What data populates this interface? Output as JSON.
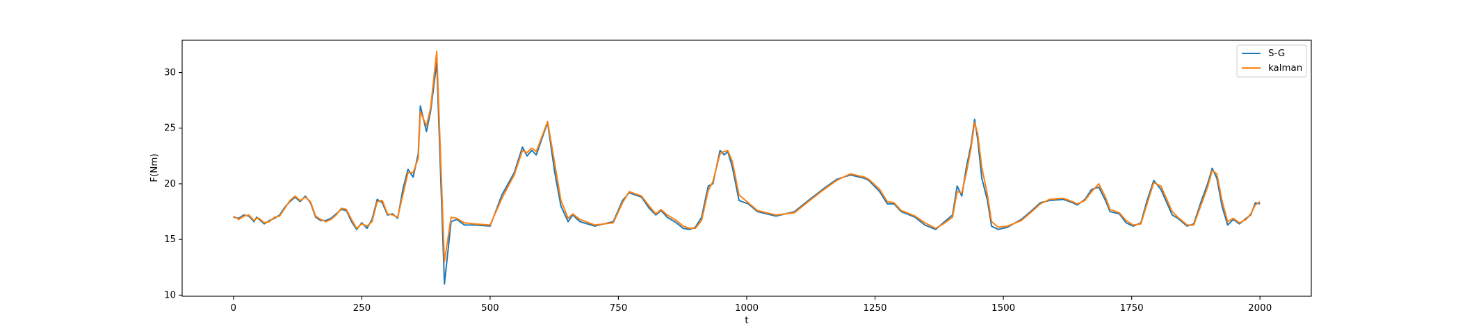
{
  "chart_data": {
    "type": "line",
    "x_label": "t",
    "y_label": "F(Nm)",
    "legend": "upper right",
    "xlim": [
      -100,
      2100
    ],
    "xticks": [
      0,
      250,
      500,
      750,
      1000,
      1250,
      1500,
      1750,
      2000
    ],
    "ylim": [
      9.9,
      32.9
    ],
    "yticks": [
      10,
      15,
      20,
      25,
      30
    ],
    "x": [
      0,
      10,
      20,
      30,
      40,
      45,
      50,
      60,
      70,
      80,
      90,
      100,
      110,
      120,
      130,
      140,
      150,
      160,
      170,
      180,
      190,
      200,
      210,
      220,
      230,
      240,
      250,
      260,
      270,
      280,
      290,
      300,
      310,
      320,
      330,
      340,
      350,
      360,
      364,
      376,
      384,
      396,
      411,
      424,
      435,
      450,
      470,
      500,
      523,
      547,
      563,
      572,
      581,
      590,
      599,
      612,
      626,
      638,
      652,
      661,
      675,
      704,
      740,
      758,
      771,
      795,
      810,
      823,
      833,
      845,
      863,
      876,
      889,
      900,
      912,
      925,
      934,
      948,
      956,
      963,
      972,
      985,
      1003,
      1021,
      1039,
      1057,
      1093,
      1120,
      1148,
      1175,
      1202,
      1229,
      1238,
      1259,
      1274,
      1287,
      1301,
      1328,
      1347,
      1368,
      1383,
      1401,
      1410,
      1419,
      1428,
      1437,
      1444,
      1450,
      1458,
      1469,
      1477,
      1490,
      1508,
      1535,
      1553,
      1572,
      1590,
      1617,
      1635,
      1644,
      1659,
      1672,
      1686,
      1699,
      1708,
      1726,
      1739,
      1753,
      1768,
      1780,
      1793,
      1807,
      1829,
      1840,
      1858,
      1871,
      1886,
      1898,
      1907,
      1916,
      1926,
      1937,
      1948,
      1960,
      1973,
      1982,
      1991,
      2000
    ],
    "series": [
      {
        "name": "S-G",
        "color": "#1f77b4",
        "values": [
          17.0,
          16.9,
          17.2,
          17.1,
          16.6,
          17.0,
          16.8,
          16.4,
          16.7,
          16.9,
          17.2,
          17.9,
          18.4,
          18.8,
          18.4,
          18.9,
          18.3,
          17.0,
          16.7,
          16.7,
          16.9,
          17.3,
          17.7,
          17.6,
          16.6,
          15.9,
          16.5,
          16.0,
          16.8,
          18.6,
          18.3,
          17.2,
          17.3,
          16.9,
          19.5,
          21.3,
          20.6,
          22.7,
          27.0,
          24.7,
          26.5,
          30.9,
          11.0,
          16.6,
          16.8,
          16.3,
          16.3,
          16.2,
          19.0,
          21.0,
          23.3,
          22.5,
          23.0,
          22.6,
          23.8,
          25.5,
          21.0,
          18.0,
          16.6,
          17.2,
          16.6,
          16.2,
          16.6,
          18.5,
          19.2,
          18.8,
          17.8,
          17.2,
          17.6,
          17.0,
          16.5,
          16.0,
          15.9,
          16.1,
          17.0,
          19.8,
          20.0,
          23.0,
          22.6,
          22.9,
          21.5,
          18.5,
          18.2,
          17.5,
          17.3,
          17.1,
          17.5,
          18.5,
          19.5,
          20.4,
          20.8,
          20.5,
          20.3,
          19.3,
          18.2,
          18.2,
          17.5,
          17.0,
          16.3,
          15.9,
          16.5,
          17.2,
          19.8,
          18.9,
          21.5,
          23.5,
          25.8,
          24.0,
          20.5,
          18.5,
          16.2,
          15.9,
          16.1,
          16.8,
          17.5,
          18.3,
          18.5,
          18.6,
          18.3,
          18.1,
          18.6,
          19.5,
          19.7,
          18.5,
          17.5,
          17.3,
          16.5,
          16.2,
          16.5,
          18.5,
          20.3,
          19.5,
          17.2,
          16.9,
          16.2,
          16.4,
          18.5,
          20.0,
          21.4,
          20.5,
          18.0,
          16.3,
          16.8,
          16.4,
          16.9,
          17.2,
          18.3,
          18.2
        ]
      },
      {
        "name": "kalman",
        "color": "#ff7f0e",
        "values": [
          17.1,
          16.8,
          17.1,
          17.2,
          16.7,
          16.9,
          16.9,
          16.5,
          16.6,
          17.0,
          17.1,
          17.8,
          18.5,
          18.9,
          18.5,
          18.8,
          18.4,
          17.1,
          16.8,
          16.6,
          16.8,
          17.2,
          17.8,
          17.7,
          16.8,
          16.0,
          16.4,
          16.2,
          16.6,
          18.4,
          18.5,
          17.3,
          17.2,
          17.0,
          19.0,
          21.0,
          21.0,
          22.3,
          26.5,
          25.2,
          26.8,
          31.9,
          13.0,
          17.0,
          16.9,
          16.5,
          16.4,
          16.3,
          18.7,
          20.8,
          23.0,
          22.8,
          23.2,
          22.9,
          24.0,
          25.6,
          21.8,
          18.5,
          16.9,
          17.3,
          16.8,
          16.3,
          16.5,
          18.3,
          19.3,
          18.9,
          18.0,
          17.3,
          17.7,
          17.2,
          16.7,
          16.2,
          16.0,
          16.0,
          16.7,
          19.4,
          20.2,
          22.7,
          22.9,
          23.0,
          22.0,
          19.0,
          18.3,
          17.6,
          17.4,
          17.2,
          17.4,
          18.4,
          19.4,
          20.3,
          20.9,
          20.6,
          20.4,
          19.5,
          18.4,
          18.3,
          17.6,
          17.1,
          16.5,
          16.0,
          16.4,
          17.0,
          19.3,
          19.2,
          21.0,
          23.2,
          25.5,
          24.5,
          21.5,
          19.0,
          16.6,
          16.1,
          16.2,
          16.7,
          17.4,
          18.2,
          18.6,
          18.7,
          18.4,
          18.2,
          18.5,
          19.3,
          20.0,
          18.8,
          17.7,
          17.4,
          16.7,
          16.3,
          16.4,
          18.2,
          20.1,
          19.8,
          17.5,
          17.0,
          16.3,
          16.3,
          18.2,
          19.7,
          21.2,
          20.9,
          18.5,
          16.6,
          16.9,
          16.5,
          16.8,
          17.3,
          18.1,
          18.4
        ]
      }
    ]
  }
}
